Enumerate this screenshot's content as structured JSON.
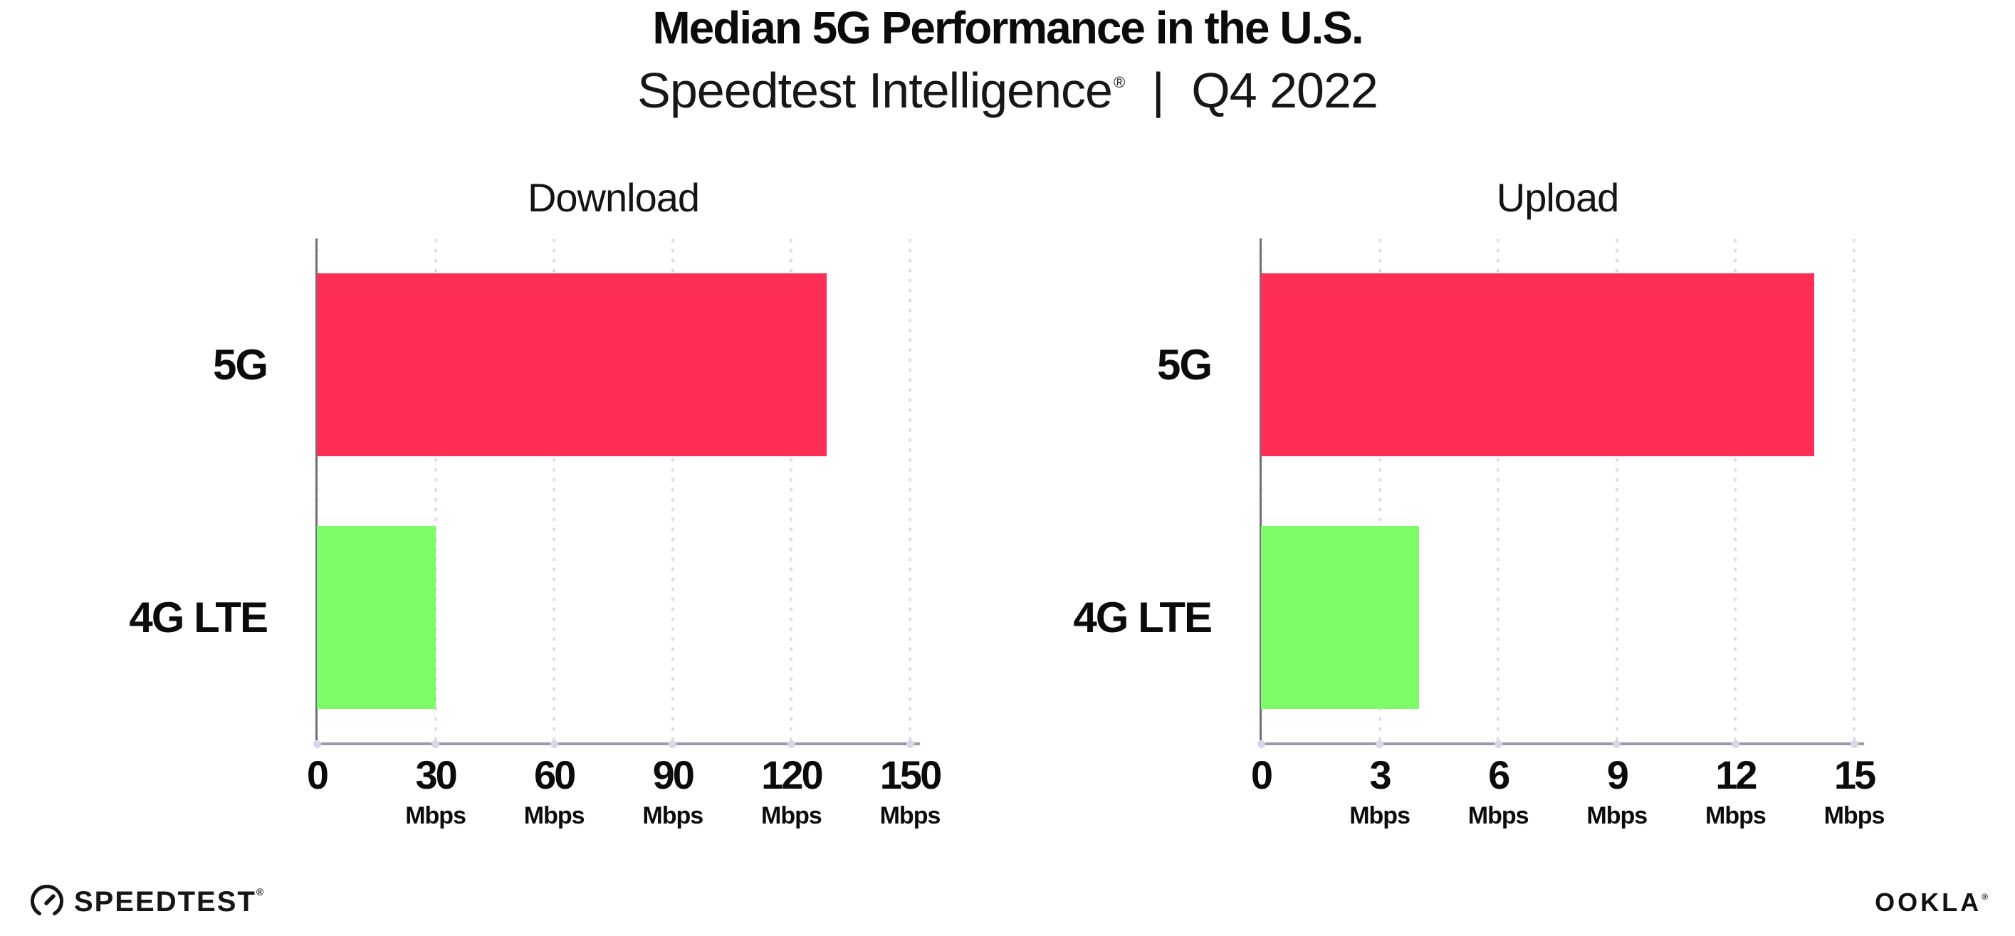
{
  "header": {
    "title": "Median 5G Performance in the U.S.",
    "subtitle_brand": "Speedtest Intelligence",
    "subtitle_reg": "®",
    "subtitle_separator": "|",
    "subtitle_period": "Q4 2022"
  },
  "chart_data": [
    {
      "type": "bar",
      "orientation": "horizontal",
      "title": "Download",
      "categories": [
        "5G",
        "4G LTE"
      ],
      "values": [
        129,
        30
      ],
      "unit": "Mbps",
      "xlim": [
        0,
        150
      ],
      "xticks": [
        0,
        30,
        60,
        90,
        120,
        150
      ],
      "bar_colors": [
        "#FF2E56",
        "#7EFC67"
      ],
      "grid": "vertical-dotted",
      "legend": "none"
    },
    {
      "type": "bar",
      "orientation": "horizontal",
      "title": "Upload",
      "categories": [
        "5G",
        "4G LTE"
      ],
      "values": [
        14,
        4
      ],
      "unit": "Mbps",
      "xlim": [
        0,
        15
      ],
      "xticks": [
        0,
        3,
        6,
        9,
        12,
        15
      ],
      "bar_colors": [
        "#FF2E56",
        "#7EFC67"
      ],
      "grid": "vertical-dotted",
      "legend": "none"
    }
  ],
  "footer": {
    "speedtest_label": "SPEEDTEST",
    "speedtest_reg": "®",
    "ookla_label": "OOKLA",
    "ookla_reg": "®"
  },
  "colors": {
    "bar_5g": "#FF2E56",
    "bar_4g_lte": "#7EFC67",
    "x_axis": "#9b9ba3",
    "y_axis": "#70707a",
    "gridline_dots": "#dcdde9",
    "text": "#0b0b0b",
    "background": "#ffffff"
  }
}
